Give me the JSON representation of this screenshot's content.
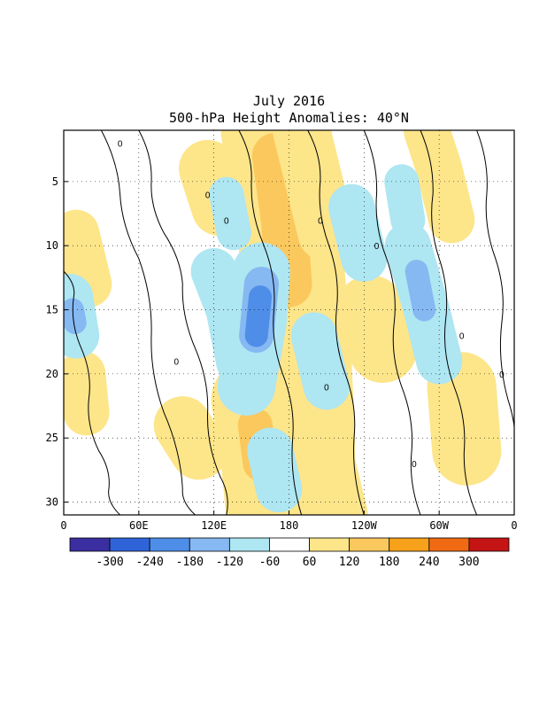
{
  "chart_data": {
    "type": "heatmap",
    "title": "July 2016",
    "subtitle": "500-hPa Height Anomalies: 40°N",
    "x_ticks": [
      "0",
      "60E",
      "120E",
      "180",
      "120W",
      "60W",
      "0"
    ],
    "y_ticks": [
      "5",
      "10",
      "15",
      "20",
      "25",
      "30"
    ],
    "ylim": [
      31,
      1
    ],
    "grid": true,
    "colorbar": {
      "levels": [
        "-300",
        "-240",
        "-180",
        "-120",
        "-60",
        "60",
        "120",
        "180",
        "240",
        "300"
      ],
      "colors": [
        "#3b2ea0",
        "#2f64d8",
        "#4e8ee8",
        "#86b8f2",
        "#aee6f2",
        "#ffffff",
        "#fde58a",
        "#fbc85d",
        "#f7a21a",
        "#f06a14",
        "#c41414"
      ]
    },
    "contour_label": "0",
    "anomaly_bands": [
      {
        "sign": "positive",
        "level": "60",
        "points": [
          [
            167,
            1
          ],
          [
            178,
            6
          ],
          [
            183,
            12
          ],
          [
            188,
            18
          ],
          [
            191,
            24
          ],
          [
            192,
            31
          ]
        ],
        "width": 9
      },
      {
        "sign": "positive",
        "level": "120",
        "points": [
          [
            169,
            3
          ],
          [
            176,
            8
          ],
          [
            180,
            13
          ]
        ],
        "width": 4
      },
      {
        "sign": "positive",
        "level": "60",
        "points": [
          [
            150,
            22
          ],
          [
            156,
            25
          ],
          [
            162,
            31
          ]
        ],
        "width": 7
      },
      {
        "sign": "positive",
        "level": "120",
        "points": [
          [
            153,
            24
          ],
          [
            157,
            27
          ]
        ],
        "width": 3
      },
      {
        "sign": "positive",
        "level": "60",
        "points": [
          [
            190,
            1
          ],
          [
            200,
            5
          ],
          [
            210,
            9
          ]
        ],
        "width": 5
      },
      {
        "sign": "positive",
        "level": "60",
        "points": [
          [
            205,
            25
          ],
          [
            215,
            29
          ],
          [
            220,
            31
          ]
        ],
        "width": 5
      },
      {
        "sign": "positive",
        "level": "60",
        "points": [
          [
            245,
            15
          ],
          [
            255,
            18
          ]
        ],
        "width": 6
      },
      {
        "sign": "positive",
        "level": "60",
        "points": [
          [
            115,
            4
          ],
          [
            125,
            7
          ]
        ],
        "width": 5
      },
      {
        "sign": "positive",
        "level": "60",
        "points": [
          [
            290,
            1
          ],
          [
            300,
            4
          ],
          [
            310,
            8
          ]
        ],
        "width": 4
      },
      {
        "sign": "positive",
        "level": "60",
        "points": [
          [
            318,
            21
          ],
          [
            322,
            26
          ]
        ],
        "width": 6
      },
      {
        "sign": "positive",
        "level": "60",
        "points": [
          [
            10,
            9
          ],
          [
            20,
            13
          ]
        ],
        "width": 4
      },
      {
        "sign": "positive",
        "level": "60",
        "points": [
          [
            15,
            20
          ],
          [
            18,
            23
          ]
        ],
        "width": 4
      },
      {
        "sign": "positive",
        "level": "60",
        "points": [
          [
            95,
            24
          ],
          [
            108,
            26
          ]
        ],
        "width": 5
      },
      {
        "sign": "negative",
        "level": "-60",
        "points": [
          [
            120,
            12
          ],
          [
            132,
            15
          ],
          [
            140,
            19
          ]
        ],
        "width": 4
      },
      {
        "sign": "negative",
        "level": "-60",
        "points": [
          [
            158,
            12
          ],
          [
            155,
            16
          ],
          [
            146,
            21
          ]
        ],
        "width": 5
      },
      {
        "sign": "negative",
        "level": "-120",
        "points": [
          [
            158,
            13
          ],
          [
            154,
            17
          ]
        ],
        "width": 3
      },
      {
        "sign": "negative",
        "level": "-180",
        "points": [
          [
            157,
            14
          ],
          [
            154,
            17
          ]
        ],
        "width": 2
      },
      {
        "sign": "negative",
        "level": "-60",
        "points": [
          [
            130,
            6
          ],
          [
            136,
            9
          ]
        ],
        "width": 3
      },
      {
        "sign": "negative",
        "level": "-60",
        "points": [
          [
            275,
            10
          ],
          [
            290,
            15
          ],
          [
            300,
            19
          ]
        ],
        "width": 4
      },
      {
        "sign": "negative",
        "level": "-120",
        "points": [
          [
            282,
            12
          ],
          [
            288,
            15
          ]
        ],
        "width": 2
      },
      {
        "sign": "negative",
        "level": "-60",
        "points": [
          [
            200,
            17
          ],
          [
            210,
            21
          ]
        ],
        "width": 4
      },
      {
        "sign": "negative",
        "level": "-60",
        "points": [
          [
            5,
            14
          ],
          [
            10,
            17
          ]
        ],
        "width": 4
      },
      {
        "sign": "negative",
        "level": "-120",
        "points": [
          [
            7,
            15
          ],
          [
            9,
            16
          ]
        ],
        "width": 2
      },
      {
        "sign": "negative",
        "level": "-60",
        "points": [
          [
            165,
            26
          ],
          [
            172,
            29
          ]
        ],
        "width": 4
      },
      {
        "sign": "negative",
        "level": "-60",
        "points": [
          [
            230,
            7
          ],
          [
            240,
            11
          ]
        ],
        "width": 4
      },
      {
        "sign": "negative",
        "level": "-60",
        "points": [
          [
            270,
            5
          ],
          [
            275,
            8
          ]
        ],
        "width": 3
      }
    ]
  }
}
